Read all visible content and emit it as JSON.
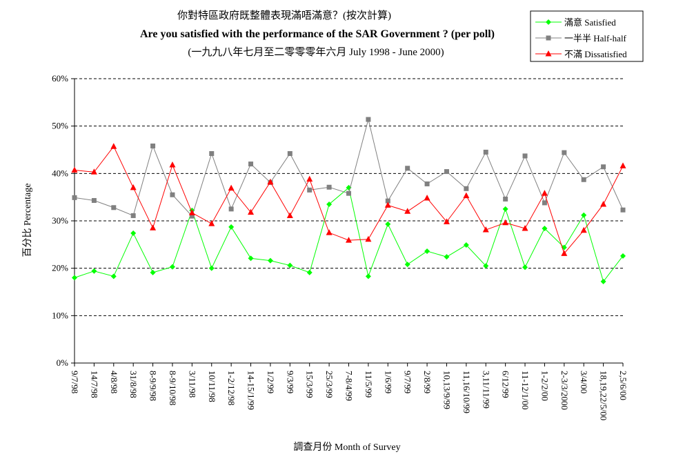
{
  "chart_data": {
    "type": "line",
    "title_zh": "你對特區政府既整體表現滿唔滿意？(按次計算)",
    "title_en": "Are you satisfied with the performance of the SAR Government ? (per poll)",
    "subtitle": "(一九九八年七月至二零零零年六月 July 1998 - June 2000)",
    "xlabel": "調查月份 Month of Survey",
    "ylabel": "百分比 Percentage",
    "ylim": [
      0,
      60
    ],
    "yticks": [
      0,
      10,
      20,
      30,
      40,
      50,
      60
    ],
    "ytick_labels": [
      "0%",
      "10%",
      "20%",
      "30%",
      "40%",
      "50%",
      "60%"
    ],
    "grid": "horizontal dashed",
    "legend_position": "top-right",
    "categories": [
      "9/7/98",
      "14/7/98",
      "4/8/98",
      "31/8/98",
      "8-9/9/98",
      "8-9/10/98",
      "3/11/98",
      "10/11/98",
      "1-2/12/98",
      "14-15/1/99",
      "1/2/99",
      "9/3/99",
      "15/3/99",
      "25/3/99",
      "7-8/4/99",
      "11/5/99",
      "1/6/99",
      "9/7/99",
      "2/8/99",
      "10,13/9/99",
      "11,16/10/99",
      "3,11/11/99",
      "6/12/99",
      "11-12/1/00",
      "1-2/2/00",
      "2-3/3/2000",
      "3/4/00",
      "18,19,22/5/00",
      "2,5/6/00"
    ],
    "series": [
      {
        "name": "滿意 Satisfied",
        "color": "#00ff00",
        "marker": "diamond",
        "values": [
          18.0,
          19.4,
          18.3,
          27.4,
          19.1,
          20.3,
          32.2,
          20.0,
          28.7,
          22.1,
          21.6,
          20.6,
          19.1,
          33.5,
          37.0,
          18.3,
          29.3,
          20.8,
          23.6,
          22.4,
          24.9,
          20.5,
          32.5,
          20.2,
          28.4,
          24.4,
          31.2,
          17.2,
          22.6
        ]
      },
      {
        "name": "一半半 Half-half",
        "color": "#808080",
        "marker": "square",
        "values": [
          34.9,
          34.3,
          32.8,
          31.1,
          45.8,
          35.5,
          31.0,
          44.2,
          32.5,
          42.0,
          38.1,
          44.2,
          36.5,
          37.1,
          35.8,
          51.4,
          34.2,
          41.1,
          37.8,
          40.4,
          36.8,
          44.5,
          34.6,
          43.7,
          33.8,
          44.4,
          38.7,
          41.4,
          32.3
        ]
      },
      {
        "name": "不滿 Dissatisfied",
        "color": "#ff0000",
        "marker": "triangle",
        "values": [
          40.7,
          40.3,
          45.7,
          37.0,
          28.5,
          41.8,
          31.7,
          29.4,
          36.9,
          31.8,
          38.2,
          31.1,
          38.8,
          27.5,
          25.9,
          26.1,
          33.3,
          32.0,
          34.8,
          29.8,
          35.3,
          28.1,
          29.6,
          28.4,
          35.8,
          23.1,
          28.0,
          33.5,
          41.6
        ]
      }
    ]
  }
}
